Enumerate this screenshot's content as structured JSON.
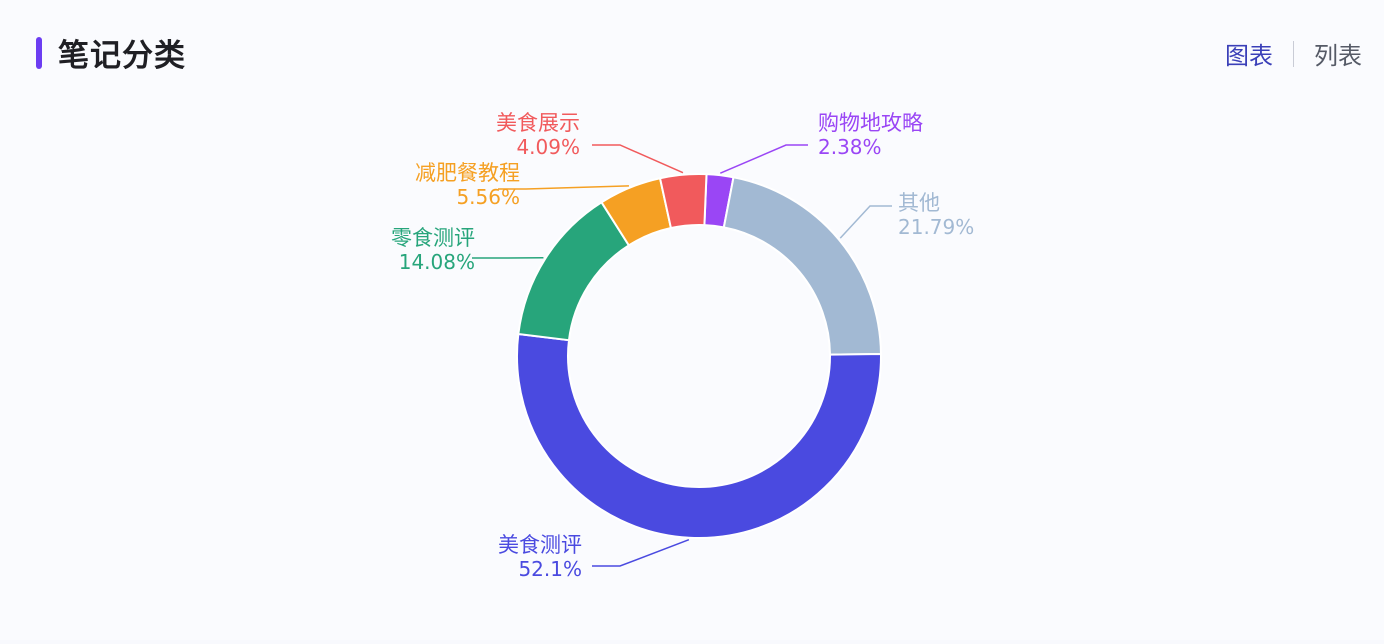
{
  "header": {
    "title": "笔记分类",
    "accent_color": "#6c3df2"
  },
  "view_toggle": {
    "chart_label": "图表",
    "list_label": "列表",
    "active": "chart"
  },
  "chart_data": {
    "type": "pie",
    "style": "donut",
    "slices": [
      {
        "label": "购物地攻略",
        "value": 2.38,
        "display": "2.38%",
        "color": "#9a46f5"
      },
      {
        "label": "其他",
        "value": 21.79,
        "display": "21.79%",
        "color": "#a2b9d3"
      },
      {
        "label": "美食测评",
        "value": 52.1,
        "display": "52.1%",
        "color": "#4a4ae0"
      },
      {
        "label": "零食测评",
        "value": 14.08,
        "display": "14.08%",
        "color": "#27a57b"
      },
      {
        "label": "减肥餐教程",
        "value": 5.56,
        "display": "5.56%",
        "color": "#f5a023"
      },
      {
        "label": "美食展示",
        "value": 4.09,
        "display": "4.09%",
        "color": "#f15a5c"
      }
    ]
  }
}
